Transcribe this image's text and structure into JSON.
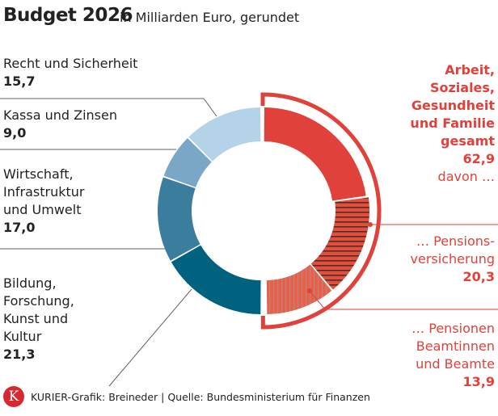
{
  "header": {
    "title": "Budget 2026",
    "subtitle": "in Milliarden Euro, gerundet"
  },
  "chart_data": {
    "type": "pie",
    "variant": "donut",
    "unit": "Milliarden Euro",
    "slices": [
      {
        "label": "Arbeit, Soziales, Gesundheit und Familie (übrige)",
        "value": 28.7,
        "color": "#e0413a",
        "pattern": "solid"
      },
      {
        "label": "… Pensionsversicherung",
        "value": 20.3,
        "color": "#e0413a",
        "pattern": "horizontal-stripes"
      },
      {
        "label": "… Pensionen Beamtinnen und Beamte",
        "value": 13.9,
        "color": "#e8604a",
        "pattern": "vertical-stripes"
      },
      {
        "label": "Bildung, Forschung, Kunst und Kultur",
        "value": 21.3,
        "color": "#00627f"
      },
      {
        "label": "Wirtschaft, Infrastruktur und Umwelt",
        "value": 17.0,
        "color": "#3a7d9c"
      },
      {
        "label": "Kassa und Zinsen",
        "value": 9.0,
        "color": "#7aa7c7"
      },
      {
        "label": "Recht und Sicherheit",
        "value": 15.7,
        "color": "#b5d3e8"
      }
    ],
    "group": {
      "label": "Arbeit, Soziales, Gesundheit und Familie gesamt",
      "value": 62.9
    }
  },
  "labels": {
    "recht": {
      "name": "Recht und Sicherheit",
      "value": "15,7"
    },
    "kassa": {
      "name": "Kassa und Zinsen",
      "value": "9,0"
    },
    "wirtschaft": {
      "l1": "Wirtschaft,",
      "l2": "Infrastruktur",
      "l3": "und Umwelt",
      "value": "17,0"
    },
    "bildung": {
      "l1": "Bildung,",
      "l2": "Forschung,",
      "l3": "Kunst und",
      "l4": "Kultur",
      "value": "21,3"
    },
    "arbeit": {
      "l1": "Arbeit,",
      "l2": "Soziales,",
      "l3": "Gesundheit",
      "l4": "und Familie",
      "l5": "gesamt",
      "value": "62,9",
      "note": "davon …"
    },
    "pension": {
      "l1": "… Pensions-",
      "l2": "versicherung",
      "value": "20,3"
    },
    "beamte": {
      "l1": "… Pensionen",
      "l2": "Beamtinnen",
      "l3": "und Beamte",
      "value": "13,9"
    }
  },
  "footer": {
    "logo": "K",
    "credit": "KURIER-Grafik: Breineder | Quelle: Bundesministerium für Finanzen"
  }
}
